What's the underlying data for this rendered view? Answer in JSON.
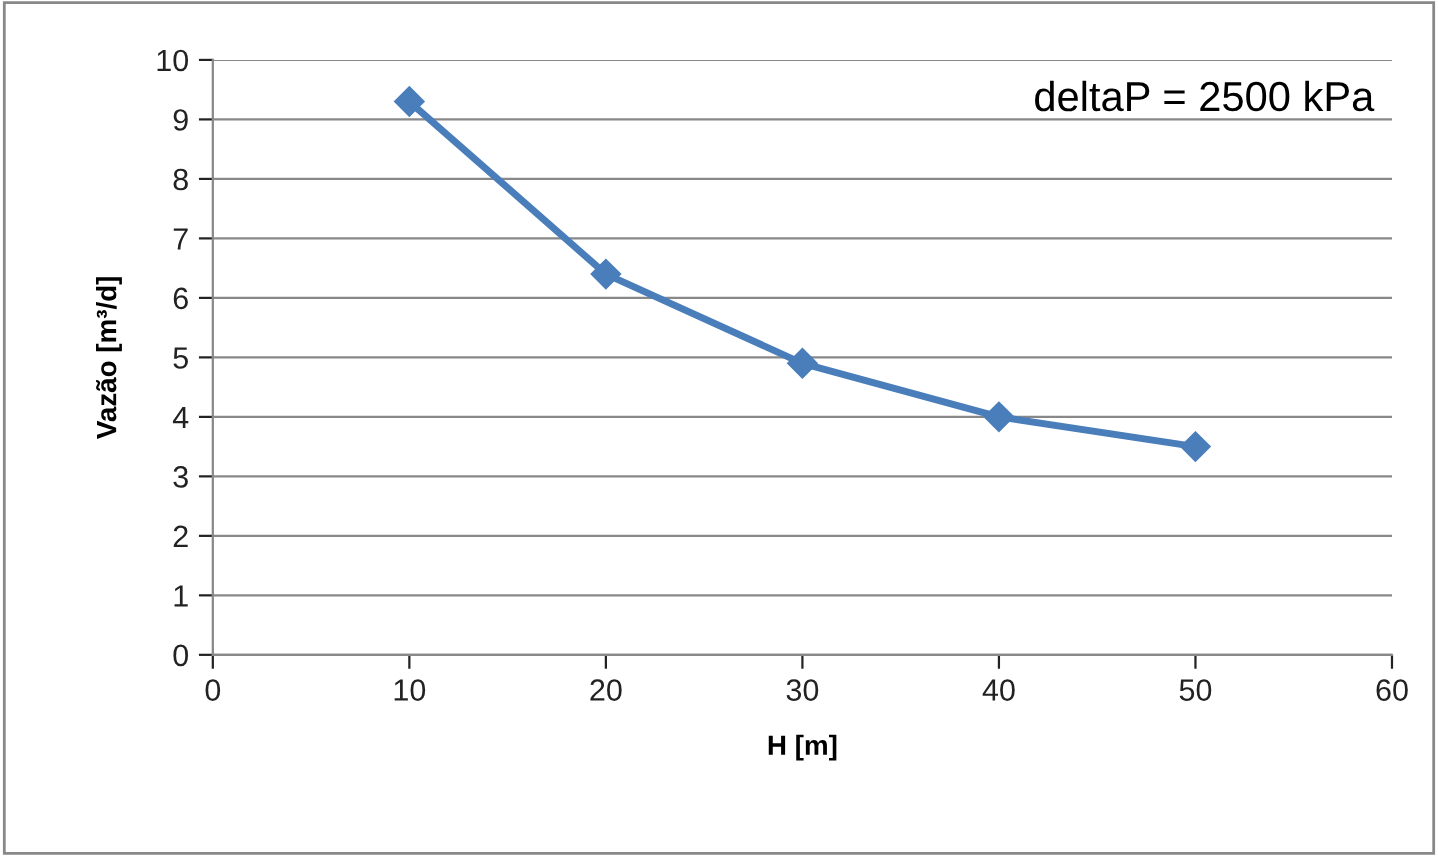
{
  "chart_data": {
    "type": "line",
    "xlabel": "H [m]",
    "ylabel": "Vazão [m³/d]",
    "annotations": [
      "deltaP = 2500 kPa"
    ],
    "x": [
      10,
      20,
      30,
      40,
      50
    ],
    "series": [
      {
        "color": "#4a7ebb",
        "values": [
          9.3,
          6.4,
          4.9,
          4.0,
          3.5
        ]
      }
    ],
    "xlim": [
      0,
      60
    ],
    "xticks": [
      0,
      10,
      20,
      30,
      40,
      50,
      60
    ],
    "ylim": [
      0,
      10
    ],
    "yticks": [
      0,
      1,
      2,
      3,
      4,
      5,
      6,
      7,
      8,
      9,
      10
    ],
    "grid": "y",
    "marker": "diamond",
    "line_style": "solid"
  }
}
